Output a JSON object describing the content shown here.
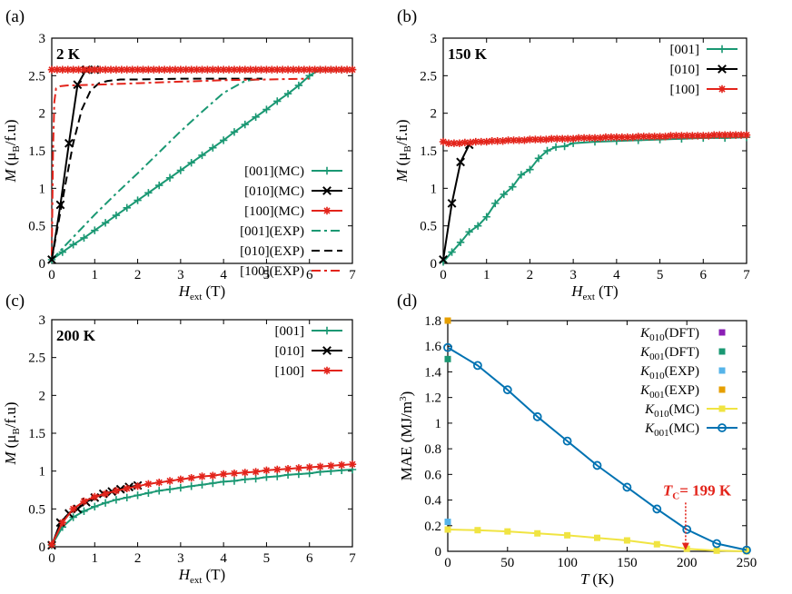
{
  "chart_data": [
    {
      "type": "line",
      "panel_label": "(a)",
      "title": "2 K",
      "xlabel": "H",
      "xlabel_sub": "ext",
      "xlabel_unit": "(T)",
      "ylabel": "M",
      "ylabel_unit": "(μ",
      "ylabel_sub": "B",
      "ylabel_end": "/f.u)",
      "xlim": [
        0,
        7
      ],
      "ylim": [
        0,
        3
      ],
      "xticks": [
        "0",
        "1",
        "2",
        "3",
        "4",
        "5",
        "6",
        "7"
      ],
      "yticks": [
        "0",
        "0.5",
        "1",
        "1.5",
        "2",
        "2.5",
        "3"
      ],
      "legend_position": "bottom-right",
      "series": [
        {
          "name": "[001](MC)",
          "color": "#1a9873",
          "style": "solid",
          "marker": "plus",
          "x": [
            0,
            0.25,
            0.5,
            0.75,
            1,
            1.25,
            1.5,
            1.75,
            2,
            2.25,
            2.5,
            2.75,
            3,
            3.25,
            3.5,
            3.75,
            4,
            4.25,
            4.5,
            4.75,
            5,
            5.25,
            5.5,
            5.75,
            6,
            6.25,
            6.5,
            6.75,
            7
          ],
          "y": [
            0.05,
            0.15,
            0.25,
            0.34,
            0.44,
            0.54,
            0.64,
            0.74,
            0.84,
            0.94,
            1.04,
            1.14,
            1.24,
            1.34,
            1.44,
            1.54,
            1.64,
            1.75,
            1.85,
            1.95,
            2.05,
            2.16,
            2.26,
            2.37,
            2.5,
            2.58,
            2.58,
            2.58,
            2.58
          ]
        },
        {
          "name": "[010](MC)",
          "color": "#000000",
          "style": "solid",
          "marker": "cross",
          "x": [
            0,
            0.2,
            0.4,
            0.6,
            0.8,
            1.0
          ],
          "y": [
            0.05,
            0.78,
            1.6,
            2.38,
            2.58,
            2.58
          ]
        },
        {
          "name": "[100](MC)",
          "color": "#e3241b",
          "style": "solid",
          "marker": "star",
          "x": [
            0,
            0.125,
            0.25,
            0.375,
            0.5,
            0.625,
            0.75,
            0.875,
            1,
            1.125,
            1.25,
            1.375,
            1.5,
            1.625,
            1.75,
            1.875,
            2,
            2.125,
            2.25,
            2.375,
            2.5,
            2.625,
            2.75,
            2.875,
            3,
            3.125,
            3.25,
            3.375,
            3.5,
            3.625,
            3.75,
            3.875,
            4,
            4.125,
            4.25,
            4.375,
            4.5,
            4.625,
            4.75,
            4.875,
            5,
            5.125,
            5.25,
            5.375,
            5.5,
            5.625,
            5.75,
            5.875,
            6,
            6.125,
            6.25,
            6.375,
            6.5,
            6.625,
            6.75,
            6.875,
            7
          ],
          "y": [
            2.58,
            2.58,
            2.58,
            2.58,
            2.58,
            2.58,
            2.58,
            2.58,
            2.58,
            2.58,
            2.58,
            2.58,
            2.58,
            2.58,
            2.58,
            2.58,
            2.58,
            2.58,
            2.58,
            2.58,
            2.58,
            2.58,
            2.58,
            2.58,
            2.58,
            2.58,
            2.58,
            2.58,
            2.58,
            2.58,
            2.58,
            2.58,
            2.58,
            2.58,
            2.58,
            2.58,
            2.58,
            2.58,
            2.58,
            2.58,
            2.58,
            2.58,
            2.58,
            2.58,
            2.58,
            2.58,
            2.58,
            2.58,
            2.58,
            2.58,
            2.58,
            2.58,
            2.58,
            2.58,
            2.58,
            2.58,
            2.58
          ]
        },
        {
          "name": "[001](EXP)",
          "color": "#1a9873",
          "style": "dashdot",
          "marker": "none",
          "x": [
            0,
            0.5,
            1,
            1.5,
            2,
            2.5,
            3,
            3.5,
            4,
            4.5,
            4.9
          ],
          "y": [
            0.05,
            0.35,
            0.65,
            0.93,
            1.2,
            1.48,
            1.76,
            2.02,
            2.27,
            2.43,
            2.46
          ]
        },
        {
          "name": "[010](EXP)",
          "color": "#000000",
          "style": "dashed",
          "marker": "none",
          "x": [
            0,
            0.3,
            0.5,
            0.7,
            0.9,
            1.1,
            1.3,
            1.6,
            2,
            3,
            4,
            4.9
          ],
          "y": [
            0.05,
            1.0,
            1.6,
            2.05,
            2.3,
            2.4,
            2.43,
            2.45,
            2.45,
            2.46,
            2.46,
            2.46
          ]
        },
        {
          "name": "[100](EXP)",
          "color": "#e3241b",
          "style": "dashdot",
          "marker": "none",
          "x": [
            0,
            0.03,
            0.06,
            0.1,
            0.2,
            0.35,
            1,
            2,
            3,
            4,
            5,
            6
          ],
          "y": [
            0.1,
            1.5,
            2.15,
            2.33,
            2.36,
            2.37,
            2.38,
            2.4,
            2.42,
            2.44,
            2.45,
            2.46
          ]
        }
      ]
    },
    {
      "type": "line",
      "panel_label": "(b)",
      "title": "150 K",
      "xlabel": "H",
      "xlabel_sub": "ext",
      "xlabel_unit": "(T)",
      "ylabel": "M",
      "ylabel_unit": "(μ",
      "ylabel_sub": "B",
      "ylabel_end": "/f.u)",
      "xlim": [
        0,
        7
      ],
      "ylim": [
        0,
        3
      ],
      "xticks": [
        "0",
        "1",
        "2",
        "3",
        "4",
        "5",
        "6",
        "7"
      ],
      "yticks": [
        "0",
        "0.5",
        "1",
        "1.5",
        "2",
        "2.5",
        "3"
      ],
      "legend_position": "top-right",
      "series": [
        {
          "name": "[001]",
          "color": "#1a9873",
          "style": "solid",
          "marker": "plus",
          "x": [
            0,
            0.2,
            0.4,
            0.6,
            0.8,
            1.0,
            1.2,
            1.4,
            1.6,
            1.8,
            2.0,
            2.2,
            2.4,
            2.6,
            2.8,
            3.0,
            3.5,
            4,
            4.5,
            5,
            5.5,
            6,
            6.5,
            7
          ],
          "y": [
            0.02,
            0.15,
            0.28,
            0.42,
            0.5,
            0.62,
            0.8,
            0.92,
            1.02,
            1.18,
            1.25,
            1.4,
            1.5,
            1.55,
            1.56,
            1.6,
            1.62,
            1.63,
            1.64,
            1.65,
            1.66,
            1.67,
            1.67,
            1.68
          ]
        },
        {
          "name": "[010]",
          "color": "#000000",
          "style": "solid",
          "marker": "cross",
          "x": [
            0,
            0.2,
            0.4,
            0.6
          ],
          "y": [
            0.05,
            0.8,
            1.35,
            1.58
          ]
        },
        {
          "name": "[100]",
          "color": "#e3241b",
          "style": "solid",
          "marker": "star",
          "x": [
            0,
            0.125,
            0.25,
            0.375,
            0.5,
            0.625,
            0.75,
            0.875,
            1,
            1.125,
            1.25,
            1.375,
            1.5,
            1.625,
            1.75,
            1.875,
            2,
            2.125,
            2.25,
            2.375,
            2.5,
            2.625,
            2.75,
            2.875,
            3,
            3.125,
            3.25,
            3.375,
            3.5,
            3.625,
            3.75,
            3.875,
            4,
            4.125,
            4.25,
            4.375,
            4.5,
            4.625,
            4.75,
            4.875,
            5,
            5.125,
            5.25,
            5.375,
            5.5,
            5.625,
            5.75,
            5.875,
            6,
            6.125,
            6.25,
            6.375,
            6.5,
            6.625,
            6.75,
            6.875,
            7
          ],
          "y": [
            1.62,
            1.6,
            1.6,
            1.6,
            1.61,
            1.61,
            1.62,
            1.62,
            1.62,
            1.63,
            1.63,
            1.63,
            1.64,
            1.64,
            1.64,
            1.64,
            1.65,
            1.65,
            1.65,
            1.65,
            1.66,
            1.66,
            1.66,
            1.66,
            1.66,
            1.67,
            1.67,
            1.67,
            1.67,
            1.67,
            1.68,
            1.68,
            1.68,
            1.68,
            1.68,
            1.68,
            1.69,
            1.69,
            1.69,
            1.69,
            1.69,
            1.69,
            1.7,
            1.7,
            1.7,
            1.7,
            1.7,
            1.7,
            1.7,
            1.7,
            1.71,
            1.71,
            1.71,
            1.71,
            1.71,
            1.71,
            1.71
          ]
        }
      ]
    },
    {
      "type": "line",
      "panel_label": "(c)",
      "title": "200 K",
      "xlabel": "H",
      "xlabel_sub": "ext",
      "xlabel_unit": "(T)",
      "ylabel": "M",
      "ylabel_unit": "(μ",
      "ylabel_sub": "B",
      "ylabel_end": "/f.u)",
      "xlim": [
        0,
        7
      ],
      "ylim": [
        0,
        3
      ],
      "xticks": [
        "0",
        "1",
        "2",
        "3",
        "4",
        "5",
        "6",
        "7"
      ],
      "yticks": [
        "0",
        "0.5",
        "1",
        "1.5",
        "2",
        "2.5",
        "3"
      ],
      "legend_position": "top-right",
      "series": [
        {
          "name": "[001]",
          "color": "#1a9873",
          "style": "solid",
          "marker": "plus",
          "x": [
            0,
            0.25,
            0.5,
            0.75,
            1,
            1.25,
            1.5,
            1.75,
            2,
            2.25,
            2.5,
            2.75,
            3,
            3.25,
            3.5,
            3.75,
            4,
            4.25,
            4.5,
            4.75,
            5,
            5.25,
            5.5,
            5.75,
            6,
            6.25,
            6.5,
            6.75,
            7
          ],
          "y": [
            0.02,
            0.26,
            0.39,
            0.47,
            0.53,
            0.58,
            0.62,
            0.65,
            0.68,
            0.71,
            0.74,
            0.76,
            0.78,
            0.8,
            0.82,
            0.84,
            0.86,
            0.87,
            0.89,
            0.9,
            0.92,
            0.93,
            0.95,
            0.96,
            0.97,
            0.99,
            1.0,
            1.01,
            1.02
          ]
        },
        {
          "name": "[010]",
          "color": "#000000",
          "style": "solid",
          "marker": "cross",
          "x": [
            0,
            0.2,
            0.4,
            0.6,
            0.8,
            1.0,
            1.2,
            1.4,
            1.6,
            1.8,
            2.0
          ],
          "y": [
            0.02,
            0.32,
            0.44,
            0.5,
            0.59,
            0.65,
            0.7,
            0.73,
            0.76,
            0.79,
            0.81
          ]
        },
        {
          "name": "[100]",
          "color": "#e3241b",
          "style": "solid",
          "marker": "star",
          "x": [
            0,
            0.25,
            0.5,
            0.75,
            1,
            1.25,
            1.5,
            1.75,
            2,
            2.25,
            2.5,
            2.75,
            3,
            3.25,
            3.5,
            3.75,
            4,
            4.25,
            4.5,
            4.75,
            5,
            5.25,
            5.5,
            5.75,
            6,
            6.25,
            6.5,
            6.75,
            7
          ],
          "y": [
            0.03,
            0.32,
            0.5,
            0.6,
            0.66,
            0.7,
            0.74,
            0.77,
            0.8,
            0.83,
            0.85,
            0.87,
            0.89,
            0.91,
            0.93,
            0.94,
            0.96,
            0.97,
            0.98,
            0.99,
            1.01,
            1.02,
            1.03,
            1.04,
            1.05,
            1.06,
            1.07,
            1.08,
            1.09
          ]
        }
      ]
    },
    {
      "type": "line",
      "panel_label": "(d)",
      "title": "",
      "xlabel": "T",
      "xlabel_unit": "(K)",
      "ylabel": "MAE (MJ/m",
      "ylabel_sup": "3",
      "ylabel_end": ")",
      "xlim": [
        0,
        250
      ],
      "ylim": [
        0,
        1.8
      ],
      "xticks": [
        "0",
        "50",
        "100",
        "150",
        "200",
        "250"
      ],
      "yticks": [
        "0",
        "0.2",
        "0.4",
        "0.6",
        "0.8",
        "1",
        "1.2",
        "1.4",
        "1.6",
        "1.8"
      ],
      "legend_position": "top-right",
      "annotation": {
        "text_prefix": "T",
        "text_sub": "C",
        "text_rest": "= 199 K",
        "x": 199,
        "y_from": 0.38,
        "y_to": 0.01,
        "color": "#e3241b"
      },
      "series": [
        {
          "name_main": "K",
          "name_sub": "010",
          "name_rest": "(DFT)",
          "color": "#8b1fb5",
          "kind": "point",
          "x": [
            0
          ],
          "y": [
            0.17
          ]
        },
        {
          "name_main": "K",
          "name_sub": "001",
          "name_rest": "(DFT)",
          "color": "#1a9873",
          "kind": "point",
          "x": [
            0
          ],
          "y": [
            1.5
          ]
        },
        {
          "name_main": "K",
          "name_sub": "010",
          "name_rest": "(EXP)",
          "color": "#56b4e9",
          "kind": "point",
          "x": [
            0
          ],
          "y": [
            0.23
          ]
        },
        {
          "name_main": "K",
          "name_sub": "001",
          "name_rest": "(EXP)",
          "color": "#e69f00",
          "kind": "point",
          "x": [
            0
          ],
          "y": [
            1.8
          ]
        },
        {
          "name_main": "K",
          "name_sub": "010",
          "name_rest": "(MC)",
          "color": "#f0e442",
          "kind": "line",
          "marker": "square",
          "x": [
            0,
            25,
            50,
            75,
            100,
            125,
            150,
            175,
            200,
            225,
            250
          ],
          "y": [
            0.17,
            0.165,
            0.155,
            0.14,
            0.125,
            0.105,
            0.085,
            0.055,
            0.02,
            0.005,
            0.0
          ]
        },
        {
          "name_main": "K",
          "name_sub": "001",
          "name_rest": "(MC)",
          "color": "#0072b2",
          "kind": "line",
          "marker": "circle",
          "x": [
            0,
            25,
            50,
            75,
            100,
            125,
            150,
            175,
            200,
            225,
            250
          ],
          "y": [
            1.59,
            1.45,
            1.26,
            1.05,
            0.86,
            0.67,
            0.5,
            0.33,
            0.17,
            0.06,
            0.01
          ]
        }
      ]
    }
  ]
}
